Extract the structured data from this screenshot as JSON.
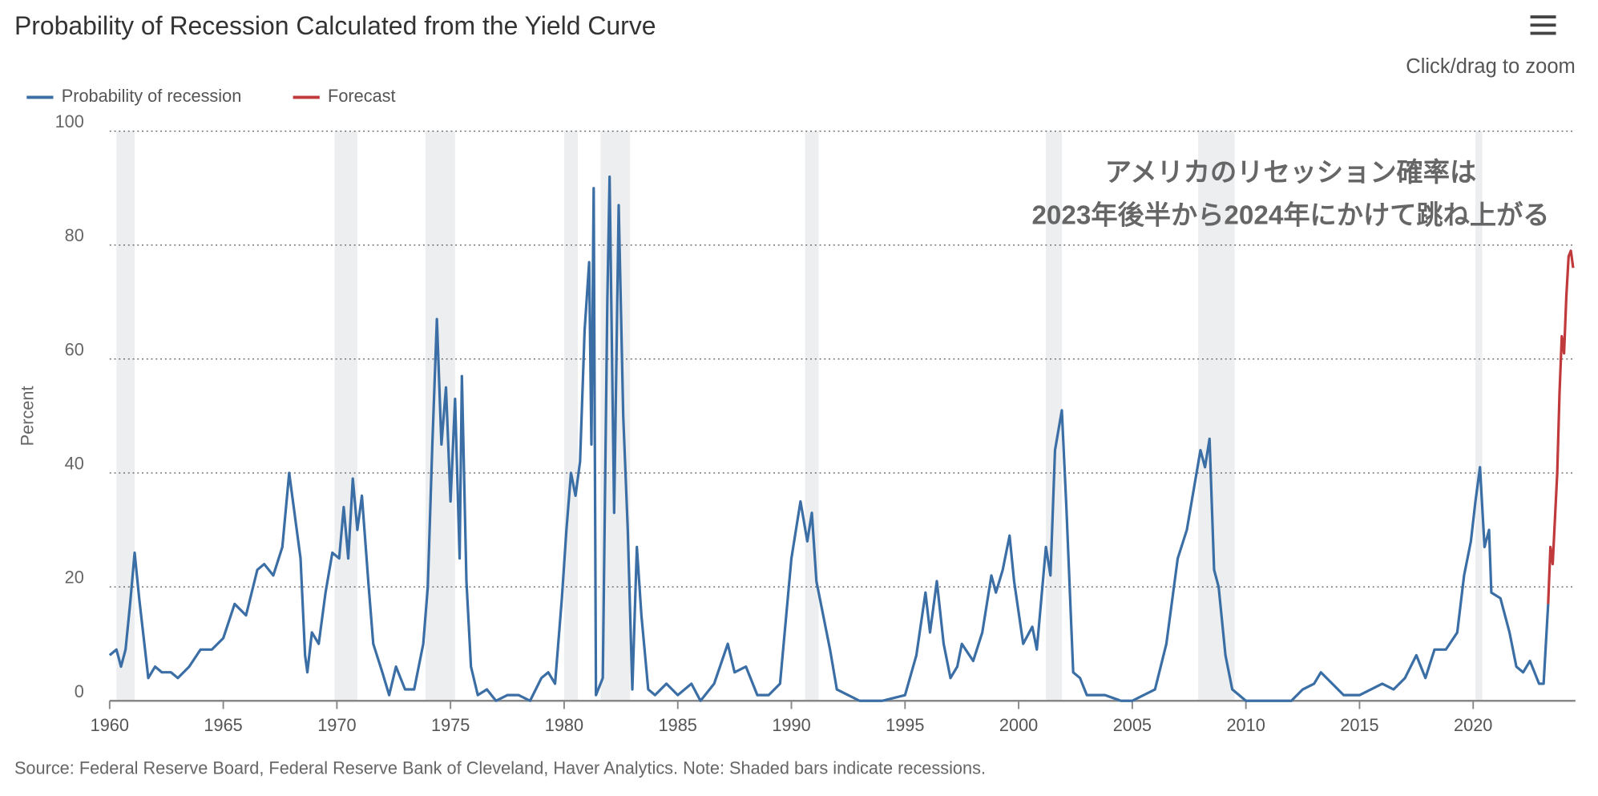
{
  "header": {
    "title": "Probability of Recession Calculated from the Yield Curve",
    "zoom_hint": "Click/drag to zoom"
  },
  "chart_data": {
    "type": "line",
    "y_label": "Percent",
    "annotation": [
      "アメリカのリセッション確率は",
      "2023年後半から2024年にかけて跳ね上がる"
    ],
    "xlim": [
      1960,
      2024.5
    ],
    "ylim": [
      0,
      100
    ],
    "xticks": [
      1960,
      1965,
      1970,
      1975,
      1980,
      1985,
      1990,
      1995,
      2000,
      2005,
      2010,
      2015,
      2020
    ],
    "yticks": [
      0,
      20,
      40,
      60,
      80,
      100
    ],
    "grid": true,
    "recessions": [
      [
        1960.3,
        1961.1
      ],
      [
        1969.9,
        1970.9
      ],
      [
        1973.9,
        1975.2
      ],
      [
        1980.0,
        1980.6
      ],
      [
        1981.6,
        1982.9
      ],
      [
        1990.6,
        1991.2
      ],
      [
        2001.2,
        2001.9
      ],
      [
        2007.9,
        2009.5
      ],
      [
        2020.1,
        2020.4
      ]
    ],
    "series": [
      {
        "name": "Probability of recession",
        "color": "#3a6ea5",
        "x": [
          1960,
          1960.3,
          1960.5,
          1960.7,
          1960.9,
          1961.1,
          1961.3,
          1961.5,
          1961.7,
          1962,
          1962.3,
          1962.7,
          1963,
          1963.5,
          1964,
          1964.5,
          1965,
          1965.5,
          1966,
          1966.5,
          1966.8,
          1967.2,
          1967.6,
          1967.9,
          1968.1,
          1968.4,
          1968.6,
          1968.7,
          1968.9,
          1969.2,
          1969.5,
          1969.8,
          1970.1,
          1970.3,
          1970.5,
          1970.7,
          1970.9,
          1971.1,
          1971.4,
          1971.6,
          1972,
          1972.3,
          1972.6,
          1973,
          1973.4,
          1973.8,
          1974,
          1974.2,
          1974.4,
          1974.6,
          1974.8,
          1975,
          1975.2,
          1975.4,
          1975.5,
          1975.7,
          1975.9,
          1976.2,
          1976.6,
          1977,
          1977.5,
          1978,
          1978.5,
          1979,
          1979.3,
          1979.6,
          1979.9,
          1980.1,
          1980.3,
          1980.5,
          1980.7,
          1980.9,
          1981.1,
          1981.2,
          1981.3,
          1981.4,
          1981.7,
          1981.9,
          1982,
          1982.2,
          1982.4,
          1982.6,
          1982.8,
          1983,
          1983.2,
          1983.4,
          1983.7,
          1984,
          1984.5,
          1985,
          1985.6,
          1986,
          1986.6,
          1987.2,
          1987.5,
          1988,
          1988.5,
          1989,
          1989.5,
          1990,
          1990.4,
          1990.7,
          1990.9,
          1991.1,
          1991.4,
          1991.7,
          1992,
          1992.5,
          1993,
          1994,
          1995,
          1995.5,
          1995.9,
          1996.1,
          1996.4,
          1996.7,
          1997,
          1997.3,
          1997.5,
          1998,
          1998.4,
          1998.8,
          1999,
          1999.3,
          1999.6,
          1999.8,
          2000.2,
          2000.6,
          2000.8,
          2001.2,
          2001.4,
          2001.6,
          2001.9,
          2002.1,
          2002.4,
          2002.7,
          2003,
          2003.8,
          2004.5,
          2005,
          2006,
          2006.5,
          2007,
          2007.4,
          2007.7,
          2008,
          2008.2,
          2008.4,
          2008.6,
          2008.8,
          2009.1,
          2009.4,
          2010,
          2011,
          2012,
          2012.5,
          2013,
          2013.3,
          2013.8,
          2014.3,
          2015,
          2015.5,
          2016,
          2016.5,
          2017,
          2017.5,
          2017.9,
          2018.3,
          2018.8,
          2019.3,
          2019.6,
          2019.9,
          2020.1,
          2020.3,
          2020.5,
          2020.7,
          2020.8,
          2021.2,
          2021.6,
          2021.9,
          2022.2,
          2022.5,
          2022.9,
          2023.1,
          2023.3
        ],
        "values": [
          8,
          9,
          6,
          9,
          17,
          26,
          18,
          11,
          4,
          6,
          5,
          5,
          4,
          6,
          9,
          9,
          11,
          17,
          15,
          23,
          24,
          22,
          27,
          40,
          34,
          25,
          8,
          5,
          12,
          10,
          19,
          26,
          25,
          34,
          25,
          39,
          30,
          36,
          20,
          10,
          5,
          1,
          6,
          2,
          2,
          10,
          20,
          45,
          67,
          45,
          55,
          35,
          53,
          25,
          57,
          21,
          6,
          1,
          2,
          0,
          1,
          1,
          0,
          4,
          5,
          3,
          18,
          30,
          40,
          36,
          42,
          65,
          77,
          45,
          90,
          1,
          4,
          70,
          92,
          33,
          87,
          50,
          30,
          2,
          27,
          15,
          2,
          1,
          3,
          1,
          3,
          0,
          3,
          10,
          5,
          6,
          1,
          1,
          3,
          25,
          35,
          28,
          33,
          21,
          15,
          9,
          2,
          1,
          0,
          0,
          1,
          8,
          19,
          12,
          21,
          10,
          4,
          6,
          10,
          7,
          12,
          22,
          19,
          23,
          29,
          21,
          10,
          13,
          9,
          27,
          22,
          44,
          51,
          34,
          5,
          4,
          1,
          1,
          0,
          0,
          2,
          10,
          25,
          30,
          37,
          44,
          41,
          46,
          23,
          20,
          8,
          2,
          0,
          0,
          0,
          2,
          3,
          5,
          3,
          1,
          1,
          2,
          3,
          2,
          4,
          8,
          4,
          9,
          9,
          12,
          22,
          28,
          35,
          41,
          27,
          30,
          19,
          18,
          12,
          6,
          5,
          7,
          3,
          3,
          17
        ]
      },
      {
        "name": "Forecast",
        "color": "#c0393b",
        "x": [
          2023.3,
          2023.4,
          2023.5,
          2023.7,
          2023.8,
          2023.9,
          2024,
          2024.1,
          2024.2,
          2024.3,
          2024.4
        ],
        "values": [
          17,
          27,
          24,
          40,
          54,
          64,
          61,
          71,
          78,
          79,
          76
        ]
      }
    ]
  },
  "footer": {
    "source": "Source: Federal Reserve Board, Federal Reserve Bank of Cleveland, Haver Analytics. Note: Shaded bars indicate recessions."
  }
}
